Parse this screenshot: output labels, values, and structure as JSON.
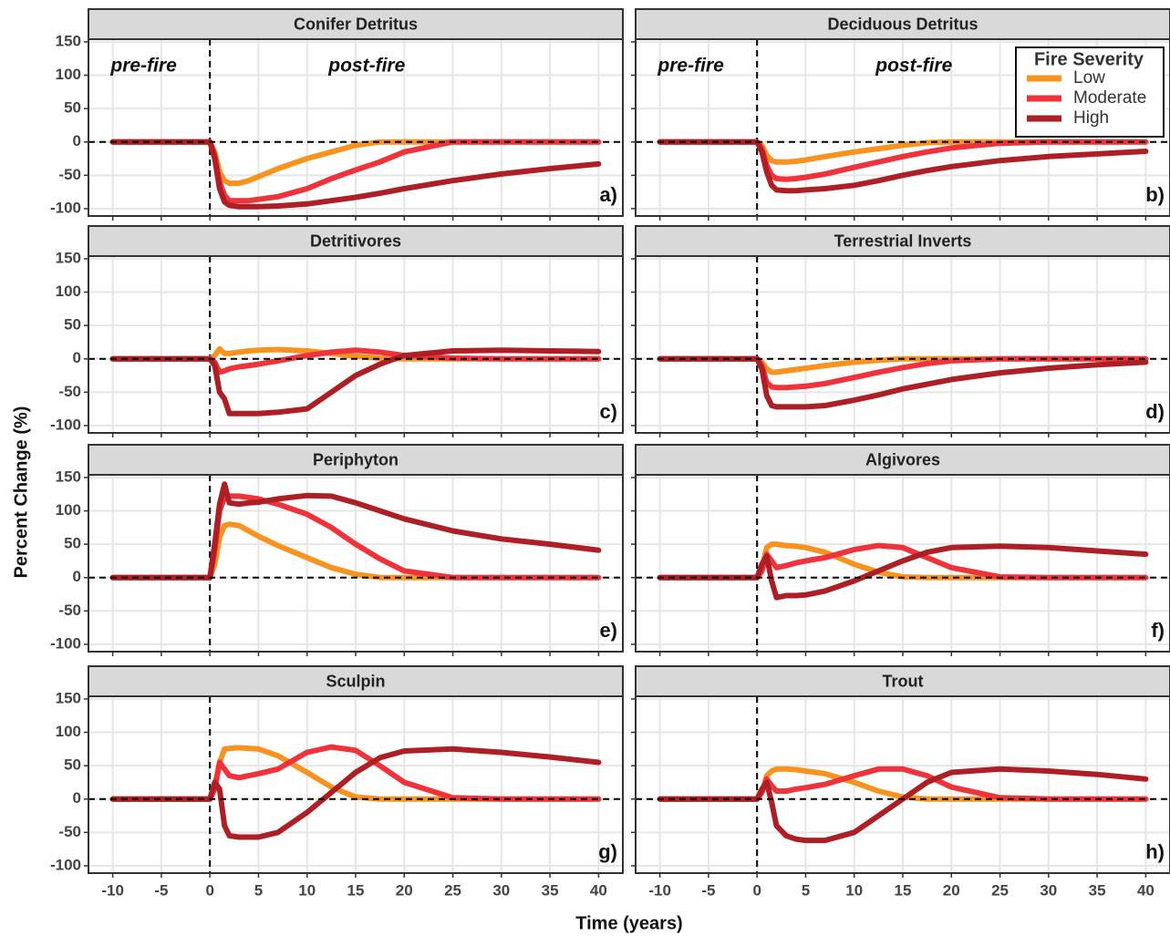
{
  "figure": {
    "y_label": "Percent Change (%)",
    "x_label": "Time (years)"
  },
  "chart_data": [
    {
      "type": "line",
      "title": "Conifer Detritus",
      "panel_label": "a)",
      "annotations": [
        "pre-fire",
        "post-fire"
      ],
      "x": [
        -10,
        0,
        0.5,
        1,
        1.5,
        2,
        3,
        4,
        5,
        7,
        10,
        12.5,
        15,
        17.5,
        20,
        25,
        30,
        35,
        40
      ],
      "series": [
        {
          "name": "Low",
          "color": "#f7931e",
          "values": [
            0,
            0,
            -15,
            -45,
            -58,
            -62,
            -62,
            -58,
            -52,
            -40,
            -25,
            -15,
            -5,
            0,
            0,
            0,
            0,
            0,
            0
          ]
        },
        {
          "name": "Moderate",
          "color": "#f0323a",
          "values": [
            0,
            0,
            -20,
            -60,
            -80,
            -88,
            -88,
            -88,
            -86,
            -82,
            -70,
            -55,
            -42,
            -30,
            -15,
            0,
            0,
            0,
            0
          ]
        },
        {
          "name": "High",
          "color": "#ad1f24",
          "values": [
            0,
            0,
            -25,
            -70,
            -90,
            -95,
            -97,
            -97,
            -97,
            -96,
            -93,
            -88,
            -83,
            -77,
            -70,
            -58,
            -48,
            -40,
            -33
          ]
        }
      ],
      "xlim": [
        -12.5,
        42.5
      ],
      "ylim": [
        -111,
        154
      ],
      "xticks": [
        -10,
        -5,
        0,
        5,
        10,
        15,
        20,
        25,
        30,
        35,
        40
      ],
      "yticks": [
        -100,
        -50,
        0,
        50,
        100,
        150
      ],
      "grid": true,
      "vlines": [
        0
      ],
      "hlines": [
        0
      ]
    },
    {
      "type": "line",
      "title": "Deciduous Detritus",
      "panel_label": "b)",
      "annotations": [
        "pre-fire",
        "post-fire"
      ],
      "legend": "top-right",
      "legend_title": "Fire Severity",
      "x": [
        -10,
        0,
        0.5,
        1,
        1.5,
        2,
        3,
        4,
        5,
        7,
        10,
        12.5,
        15,
        17.5,
        20,
        25,
        30,
        35,
        40
      ],
      "series": [
        {
          "name": "Low",
          "color": "#f7931e",
          "values": [
            0,
            0,
            -5,
            -20,
            -28,
            -30,
            -30,
            -29,
            -27,
            -22,
            -15,
            -10,
            -5,
            -1,
            0,
            0,
            0,
            0,
            0
          ]
        },
        {
          "name": "Moderate",
          "color": "#f0323a",
          "values": [
            0,
            0,
            -10,
            -35,
            -50,
            -55,
            -56,
            -55,
            -53,
            -48,
            -38,
            -30,
            -22,
            -15,
            -9,
            -2,
            0,
            0,
            0
          ]
        },
        {
          "name": "High",
          "color": "#ad1f24",
          "values": [
            0,
            0,
            -15,
            -45,
            -65,
            -72,
            -73,
            -73,
            -72,
            -70,
            -65,
            -58,
            -50,
            -43,
            -37,
            -28,
            -22,
            -18,
            -14
          ]
        }
      ],
      "xlim": [
        -12.5,
        42.5
      ],
      "ylim": [
        -111,
        154
      ],
      "xticks": [
        -10,
        -5,
        0,
        5,
        10,
        15,
        20,
        25,
        30,
        35,
        40
      ],
      "yticks": [
        -100,
        -50,
        0,
        50,
        100,
        150
      ],
      "grid": true,
      "vlines": [
        0
      ],
      "hlines": [
        0
      ]
    },
    {
      "type": "line",
      "title": "Detritivores",
      "panel_label": "c)",
      "x": [
        -10,
        0,
        0.5,
        1,
        1.5,
        2,
        3,
        4,
        5,
        7,
        10,
        12.5,
        15,
        17.5,
        20,
        25,
        30,
        35,
        40
      ],
      "series": [
        {
          "name": "Low",
          "color": "#f7931e",
          "values": [
            0,
            0,
            5,
            15,
            8,
            8,
            10,
            12,
            13,
            14,
            12,
            8,
            4,
            1,
            0,
            0,
            0,
            0,
            0
          ]
        },
        {
          "name": "Moderate",
          "color": "#f0323a",
          "values": [
            0,
            0,
            -5,
            -20,
            -18,
            -15,
            -12,
            -10,
            -8,
            -3,
            5,
            10,
            13,
            10,
            5,
            1,
            0,
            0,
            0
          ]
        },
        {
          "name": "High",
          "color": "#ad1f24",
          "values": [
            0,
            0,
            -10,
            -50,
            -60,
            -82,
            -82,
            -82,
            -82,
            -80,
            -75,
            -50,
            -25,
            -8,
            5,
            12,
            13,
            12,
            11
          ]
        }
      ],
      "xlim": [
        -12.5,
        42.5
      ],
      "ylim": [
        -111,
        154
      ],
      "xticks": [
        -10,
        -5,
        0,
        5,
        10,
        15,
        20,
        25,
        30,
        35,
        40
      ],
      "yticks": [
        -100,
        -50,
        0,
        50,
        100,
        150
      ],
      "grid": true,
      "vlines": [
        0
      ],
      "hlines": [
        0
      ]
    },
    {
      "type": "line",
      "title": "Terrestrial Inverts",
      "panel_label": "d)",
      "x": [
        -10,
        0,
        0.5,
        1,
        1.5,
        2,
        3,
        4,
        5,
        7,
        10,
        12.5,
        15,
        17.5,
        20,
        25,
        30,
        35,
        40
      ],
      "series": [
        {
          "name": "Low",
          "color": "#f7931e",
          "values": [
            0,
            0,
            -5,
            -15,
            -20,
            -20,
            -18,
            -16,
            -14,
            -10,
            -5,
            -2,
            0,
            0,
            0,
            0,
            0,
            0,
            0
          ]
        },
        {
          "name": "Moderate",
          "color": "#f0323a",
          "values": [
            0,
            0,
            -10,
            -35,
            -42,
            -43,
            -43,
            -42,
            -41,
            -37,
            -28,
            -20,
            -13,
            -7,
            -3,
            0,
            0,
            0,
            0
          ]
        },
        {
          "name": "High",
          "color": "#ad1f24",
          "values": [
            0,
            0,
            -15,
            -55,
            -70,
            -72,
            -72,
            -72,
            -72,
            -70,
            -62,
            -54,
            -45,
            -38,
            -31,
            -21,
            -14,
            -9,
            -5
          ]
        }
      ],
      "xlim": [
        -12.5,
        42.5
      ],
      "ylim": [
        -111,
        154
      ],
      "xticks": [
        -10,
        -5,
        0,
        5,
        10,
        15,
        20,
        25,
        30,
        35,
        40
      ],
      "yticks": [
        -100,
        -50,
        0,
        50,
        100,
        150
      ],
      "grid": true,
      "vlines": [
        0
      ],
      "hlines": [
        0
      ]
    },
    {
      "type": "line",
      "title": "Periphyton",
      "panel_label": "e)",
      "x": [
        -10,
        0,
        0.5,
        1,
        1.5,
        2,
        3,
        4,
        5,
        7,
        10,
        12.5,
        15,
        17.5,
        20,
        25,
        30,
        35,
        40
      ],
      "series": [
        {
          "name": "Low",
          "color": "#f7931e",
          "values": [
            0,
            0,
            20,
            60,
            78,
            80,
            78,
            70,
            62,
            48,
            30,
            15,
            5,
            0,
            0,
            0,
            0,
            0,
            0
          ]
        },
        {
          "name": "Moderate",
          "color": "#f0323a",
          "values": [
            0,
            0,
            40,
            100,
            120,
            122,
            122,
            120,
            118,
            110,
            95,
            75,
            50,
            28,
            10,
            0,
            0,
            0,
            0
          ]
        },
        {
          "name": "High",
          "color": "#ad1f24",
          "values": [
            0,
            0,
            50,
            110,
            140,
            112,
            110,
            112,
            113,
            118,
            123,
            122,
            112,
            100,
            88,
            70,
            58,
            50,
            41
          ]
        }
      ],
      "xlim": [
        -12.5,
        42.5
      ],
      "ylim": [
        -111,
        154
      ],
      "xticks": [
        -10,
        -5,
        0,
        5,
        10,
        15,
        20,
        25,
        30,
        35,
        40
      ],
      "yticks": [
        -100,
        -50,
        0,
        50,
        100,
        150
      ],
      "grid": true,
      "vlines": [
        0
      ],
      "hlines": [
        0
      ]
    },
    {
      "type": "line",
      "title": "Algivores",
      "panel_label": "f)",
      "x": [
        -10,
        0,
        0.5,
        1,
        1.5,
        2,
        3,
        4,
        5,
        7,
        10,
        12.5,
        15,
        17.5,
        20,
        25,
        30,
        35,
        40
      ],
      "series": [
        {
          "name": "Low",
          "color": "#f7931e",
          "values": [
            0,
            0,
            15,
            45,
            50,
            50,
            48,
            47,
            45,
            38,
            20,
            8,
            1,
            0,
            0,
            0,
            0,
            0,
            0
          ]
        },
        {
          "name": "Moderate",
          "color": "#f0323a",
          "values": [
            0,
            0,
            10,
            35,
            25,
            15,
            18,
            22,
            25,
            30,
            42,
            48,
            45,
            30,
            15,
            1,
            0,
            0,
            0
          ]
        },
        {
          "name": "High",
          "color": "#ad1f24",
          "values": [
            0,
            0,
            20,
            32,
            -5,
            -30,
            -27,
            -27,
            -26,
            -20,
            -5,
            10,
            25,
            38,
            45,
            47,
            45,
            40,
            35
          ]
        }
      ],
      "xlim": [
        -12.5,
        42.5
      ],
      "ylim": [
        -111,
        154
      ],
      "xticks": [
        -10,
        -5,
        0,
        5,
        10,
        15,
        20,
        25,
        30,
        35,
        40
      ],
      "yticks": [
        -100,
        -50,
        0,
        50,
        100,
        150
      ],
      "grid": true,
      "vlines": [
        0
      ],
      "hlines": [
        0
      ]
    },
    {
      "type": "line",
      "title": "Sculpin",
      "panel_label": "g)",
      "x": [
        -10,
        0,
        0.5,
        1,
        1.5,
        2,
        3,
        4,
        5,
        7,
        10,
        12.5,
        15,
        17.5,
        20,
        25,
        30,
        35,
        40
      ],
      "series": [
        {
          "name": "Low",
          "color": "#f7931e",
          "values": [
            0,
            0,
            20,
            55,
            75,
            76,
            77,
            76,
            75,
            65,
            40,
            18,
            3,
            0,
            0,
            0,
            0,
            0,
            0
          ]
        },
        {
          "name": "Moderate",
          "color": "#f0323a",
          "values": [
            0,
            0,
            15,
            55,
            45,
            35,
            32,
            35,
            38,
            45,
            70,
            78,
            73,
            50,
            25,
            2,
            0,
            0,
            0
          ]
        },
        {
          "name": "High",
          "color": "#ad1f24",
          "values": [
            0,
            0,
            25,
            15,
            -40,
            -55,
            -57,
            -57,
            -57,
            -50,
            -20,
            10,
            40,
            62,
            72,
            75,
            70,
            63,
            55
          ]
        }
      ],
      "xlim": [
        -12.5,
        42.5
      ],
      "ylim": [
        -111,
        154
      ],
      "xticks": [
        -10,
        -5,
        0,
        5,
        10,
        15,
        20,
        25,
        30,
        35,
        40
      ],
      "yticks": [
        -100,
        -50,
        0,
        50,
        100,
        150
      ],
      "grid": true,
      "vlines": [
        0
      ],
      "hlines": [
        0
      ]
    },
    {
      "type": "line",
      "title": "Trout",
      "panel_label": "h)",
      "x": [
        -10,
        0,
        0.5,
        1,
        1.5,
        2,
        3,
        4,
        5,
        7,
        10,
        12.5,
        15,
        17.5,
        20,
        25,
        30,
        35,
        40
      ],
      "series": [
        {
          "name": "Low",
          "color": "#f7931e",
          "values": [
            0,
            0,
            10,
            35,
            42,
            45,
            45,
            44,
            42,
            38,
            25,
            12,
            3,
            0,
            0,
            0,
            0,
            0,
            0
          ]
        },
        {
          "name": "Moderate",
          "color": "#f0323a",
          "values": [
            0,
            0,
            10,
            30,
            20,
            12,
            12,
            15,
            17,
            22,
            35,
            45,
            45,
            35,
            18,
            2,
            0,
            0,
            0
          ]
        },
        {
          "name": "High",
          "color": "#ad1f24",
          "values": [
            0,
            0,
            15,
            25,
            -5,
            -40,
            -55,
            -60,
            -62,
            -62,
            -50,
            -25,
            0,
            25,
            40,
            45,
            42,
            37,
            30
          ]
        }
      ],
      "xlim": [
        -12.5,
        42.5
      ],
      "ylim": [
        -111,
        154
      ],
      "xticks": [
        -10,
        -5,
        0,
        5,
        10,
        15,
        20,
        25,
        30,
        35,
        40
      ],
      "yticks": [
        -100,
        -50,
        0,
        50,
        100,
        150
      ],
      "grid": true,
      "vlines": [
        0
      ],
      "hlines": [
        0
      ]
    }
  ]
}
